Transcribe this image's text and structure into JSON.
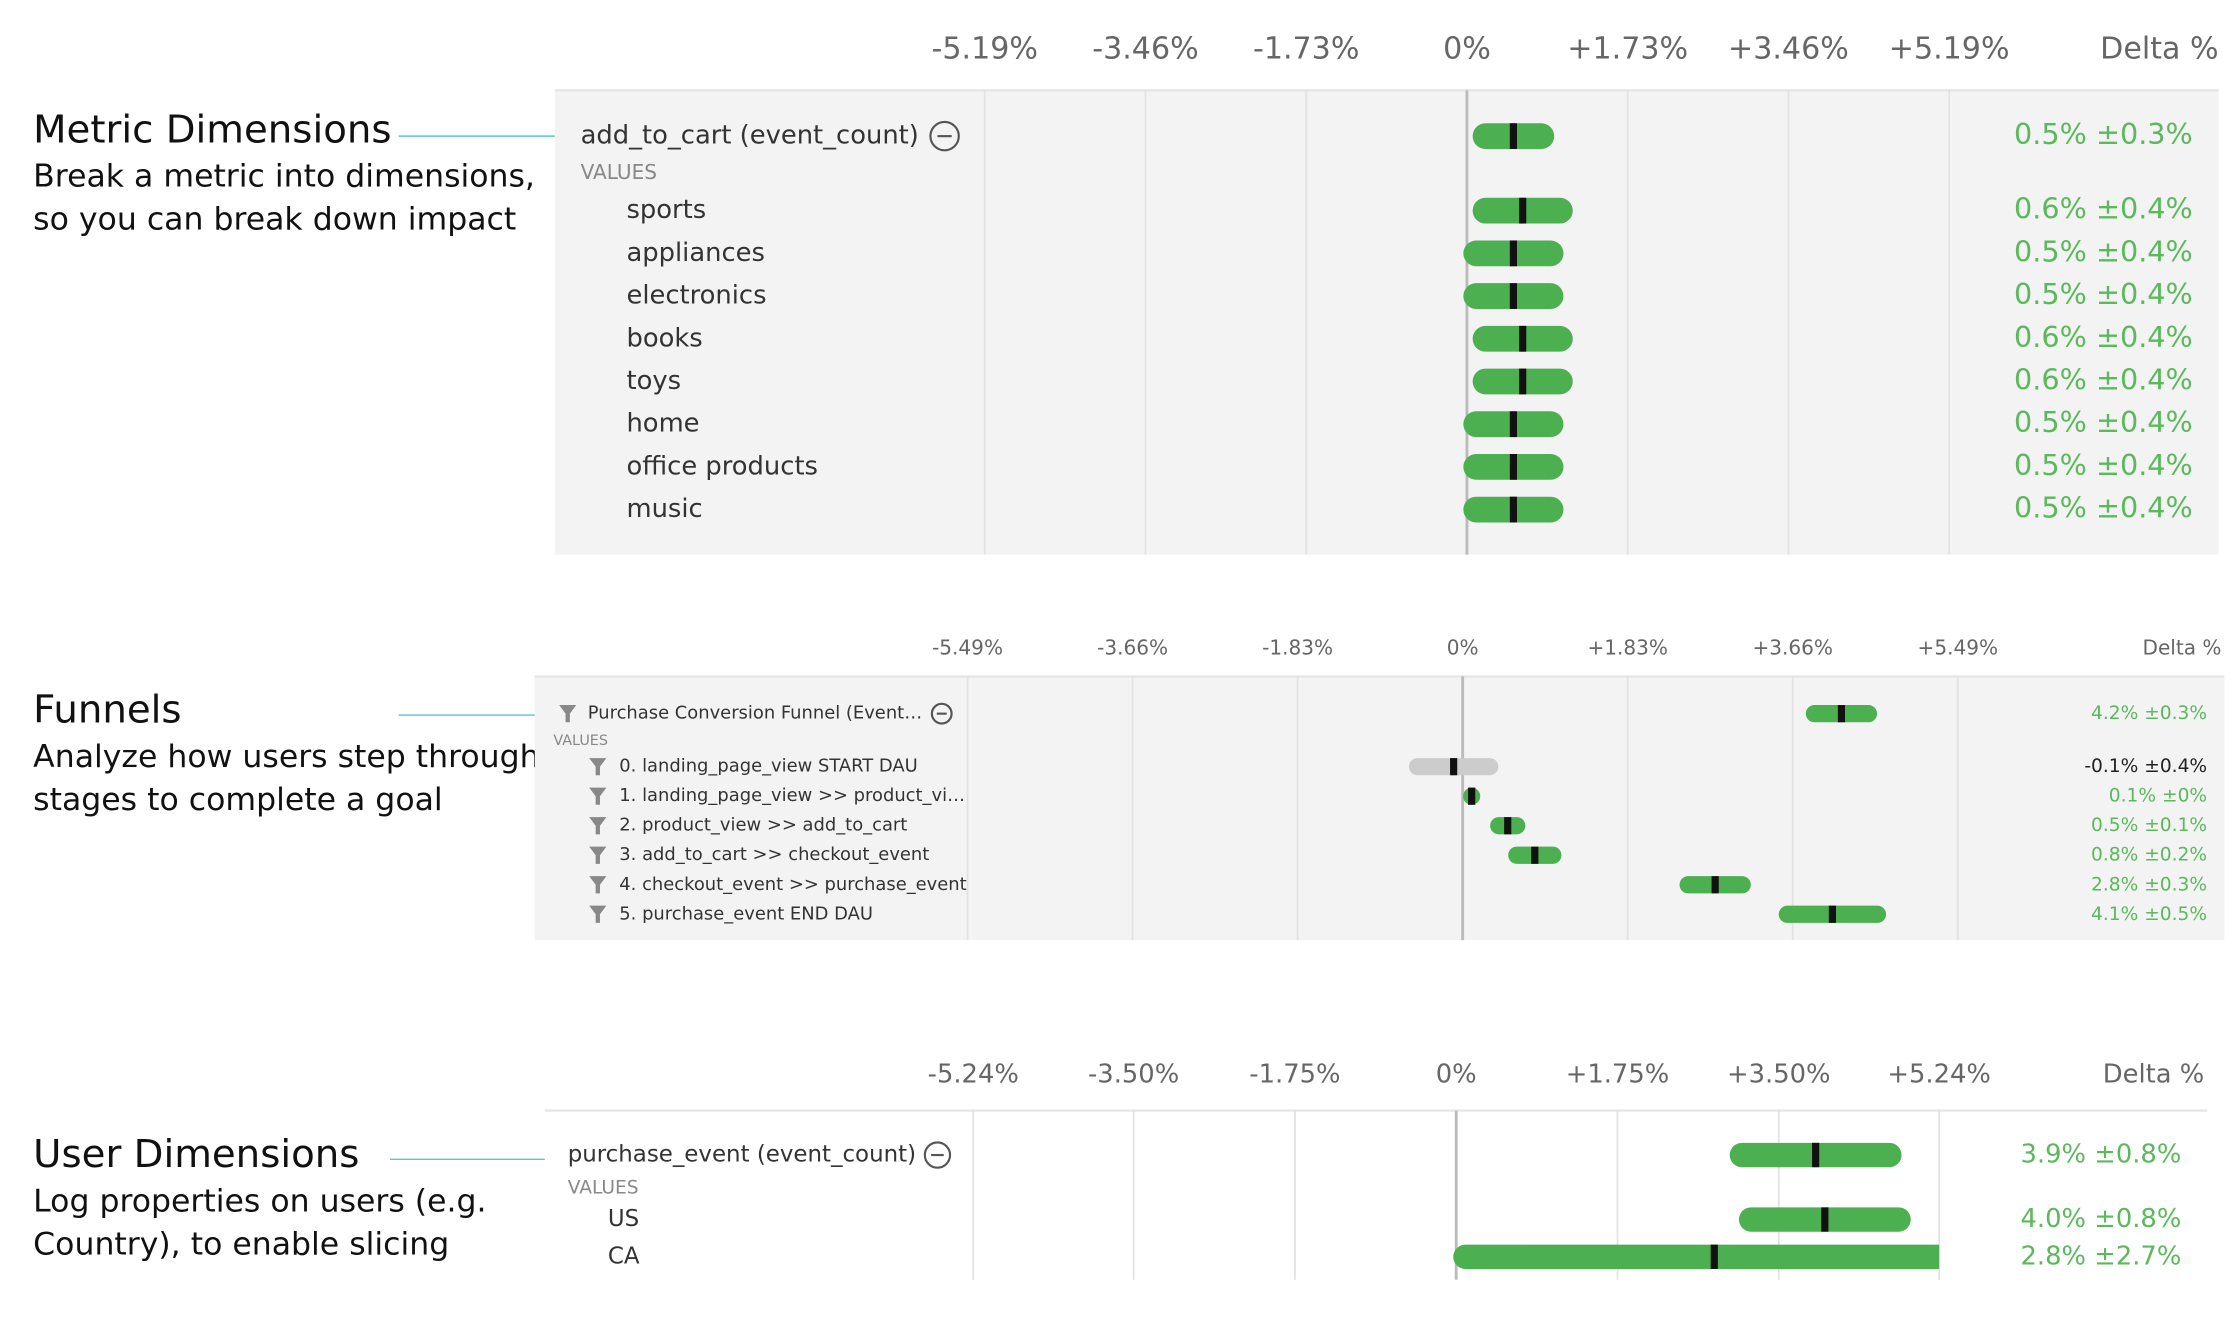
{
  "chart_data": [
    {
      "type": "interval",
      "title": "Metric Dimensions",
      "description": [
        "Break a metric into dimensions,",
        "so you can break down impact"
      ],
      "value_header": "Delta %",
      "group_label": "VALUES",
      "xlim": [
        -5.19,
        5.19
      ],
      "xticks": [
        {
          "value": -5.19,
          "label": "-5.19%"
        },
        {
          "value": -3.46,
          "label": "-3.46%"
        },
        {
          "value": -1.73,
          "label": "-1.73%"
        },
        {
          "value": 0,
          "label": "0%"
        },
        {
          "value": 1.73,
          "label": "+1.73%"
        },
        {
          "value": 3.46,
          "label": "+3.46%"
        },
        {
          "value": 5.19,
          "label": "+5.19%"
        }
      ],
      "metric": {
        "name": "add_to_cart (event_count)",
        "value": 0.5,
        "error": 0.3,
        "value_label": "0.5% ±0.3%",
        "color": "#4caf50",
        "label_color": "#5cb85c"
      },
      "categories": [
        "sports",
        "appliances",
        "electronics",
        "books",
        "toys",
        "home",
        "office products",
        "music"
      ],
      "values": [
        0.6,
        0.5,
        0.5,
        0.6,
        0.6,
        0.5,
        0.5,
        0.5
      ],
      "errors": [
        0.4,
        0.4,
        0.4,
        0.4,
        0.4,
        0.4,
        0.4,
        0.4
      ],
      "value_labels": [
        "0.6% ±0.4%",
        "0.5% ±0.4%",
        "0.5% ±0.4%",
        "0.6% ±0.4%",
        "0.6% ±0.4%",
        "0.5% ±0.4%",
        "0.5% ±0.4%",
        "0.5% ±0.4%"
      ],
      "colors": [
        "#4caf50",
        "#4caf50",
        "#4caf50",
        "#4caf50",
        "#4caf50",
        "#4caf50",
        "#4caf50",
        "#4caf50"
      ],
      "label_colors": [
        "#5cb85c",
        "#5cb85c",
        "#5cb85c",
        "#5cb85c",
        "#5cb85c",
        "#5cb85c",
        "#5cb85c",
        "#5cb85c"
      ]
    },
    {
      "type": "interval",
      "title": "Funnels",
      "description": [
        "Analyze how users step through",
        "stages to complete a goal"
      ],
      "value_header": "Delta %",
      "group_label": "VALUES",
      "xlim": [
        -5.49,
        5.49
      ],
      "xticks": [
        {
          "value": -5.49,
          "label": "-5.49%"
        },
        {
          "value": -3.66,
          "label": "-3.66%"
        },
        {
          "value": -1.83,
          "label": "-1.83%"
        },
        {
          "value": 0,
          "label": "0%"
        },
        {
          "value": 1.83,
          "label": "+1.83%"
        },
        {
          "value": 3.66,
          "label": "+3.66%"
        },
        {
          "value": 5.49,
          "label": "+5.49%"
        }
      ],
      "metric": {
        "name": "Purchase Conversion Funnel (Event…",
        "value": 4.2,
        "error": 0.3,
        "value_label": "4.2% ±0.3%",
        "color": "#4caf50",
        "label_color": "#5cb85c"
      },
      "categories": [
        "0. landing_page_view START DAU",
        "1. landing_page_view >> product_vi…",
        "2. product_view >> add_to_cart",
        "3. add_to_cart >> checkout_event",
        "4. checkout_event >> purchase_event",
        "5. purchase_event END DAU"
      ],
      "values": [
        -0.1,
        0.1,
        0.5,
        0.8,
        2.8,
        4.1
      ],
      "errors": [
        0.4,
        0,
        0.1,
        0.2,
        0.3,
        0.5
      ],
      "value_labels": [
        "-0.1% ±0.4%",
        "0.1% ±0%",
        "0.5% ±0.1%",
        "0.8% ±0.2%",
        "2.8% ±0.3%",
        "4.1% ±0.5%"
      ],
      "colors": [
        "#cccccc",
        "#4caf50",
        "#4caf50",
        "#4caf50",
        "#4caf50",
        "#4caf50"
      ],
      "label_colors": [
        "#222222",
        "#5cb85c",
        "#5cb85c",
        "#5cb85c",
        "#5cb85c",
        "#5cb85c"
      ]
    },
    {
      "type": "interval",
      "title": "User Dimensions",
      "description": [
        "Log properties on users (e.g.",
        "Country), to enable slicing"
      ],
      "value_header": "Delta %",
      "group_label": "VALUES",
      "xlim": [
        -5.24,
        5.24
      ],
      "xticks": [
        {
          "value": -5.24,
          "label": "-5.24%"
        },
        {
          "value": -3.5,
          "label": "-3.50%"
        },
        {
          "value": -1.75,
          "label": "-1.75%"
        },
        {
          "value": 0,
          "label": "0%"
        },
        {
          "value": 1.75,
          "label": "+1.75%"
        },
        {
          "value": 3.5,
          "label": "+3.50%"
        },
        {
          "value": 5.24,
          "label": "+5.24%"
        }
      ],
      "metric": {
        "name": "purchase_event (event_count)",
        "value": 3.9,
        "error": 0.8,
        "value_label": "3.9% ±0.8%",
        "color": "#4caf50",
        "label_color": "#5cb85c"
      },
      "categories": [
        "US",
        "CA"
      ],
      "values": [
        4.0,
        2.8
      ],
      "errors": [
        0.8,
        2.7
      ],
      "value_labels": [
        "4.0% ±0.8%",
        "2.8% ±2.7%"
      ],
      "colors": [
        "#4caf50",
        "#4caf50"
      ],
      "label_colors": [
        "#5cb85c",
        "#5cb85c"
      ]
    }
  ]
}
